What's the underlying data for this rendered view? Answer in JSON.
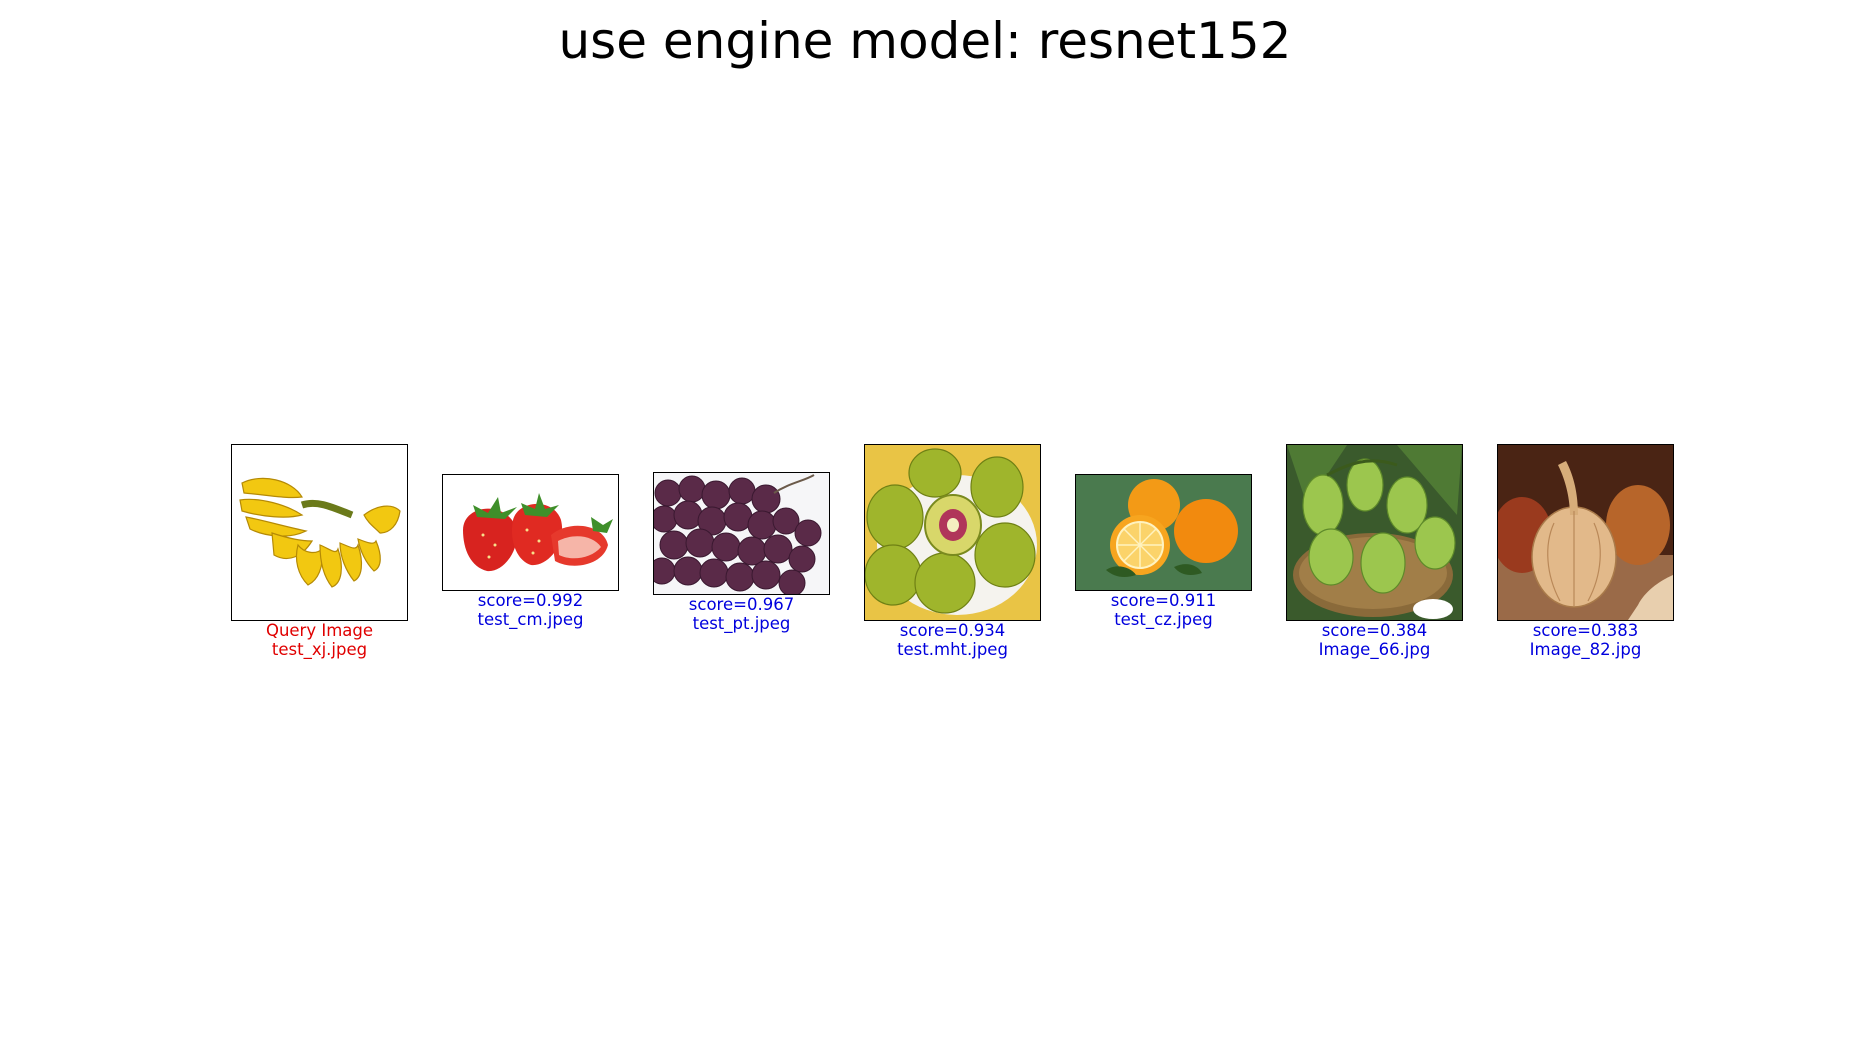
{
  "title": "use engine model: resnet152",
  "query": {
    "label": "Query Image",
    "file": "test_xj.jpeg",
    "icon": "banana-bunch-image"
  },
  "results": [
    {
      "score": "score=0.992",
      "file": "test_cm.jpeg",
      "icon": "strawberries-image"
    },
    {
      "score": "score=0.967",
      "file": "test_pt.jpeg",
      "icon": "grapes-image"
    },
    {
      "score": "score=0.934",
      "file": "test.mht.jpeg",
      "icon": "kiwi-plate-image"
    },
    {
      "score": "score=0.911",
      "file": "test_cz.jpeg",
      "icon": "oranges-image"
    },
    {
      "score": "score=0.384",
      "file": "Image_66.jpg",
      "icon": "mangoes-basket-image"
    },
    {
      "score": "score=0.383",
      "file": "Image_82.jpg",
      "icon": "onions-image"
    }
  ],
  "colors": {
    "query_text": "#e00000",
    "result_text": "#0000dd",
    "frame": "#000000"
  }
}
